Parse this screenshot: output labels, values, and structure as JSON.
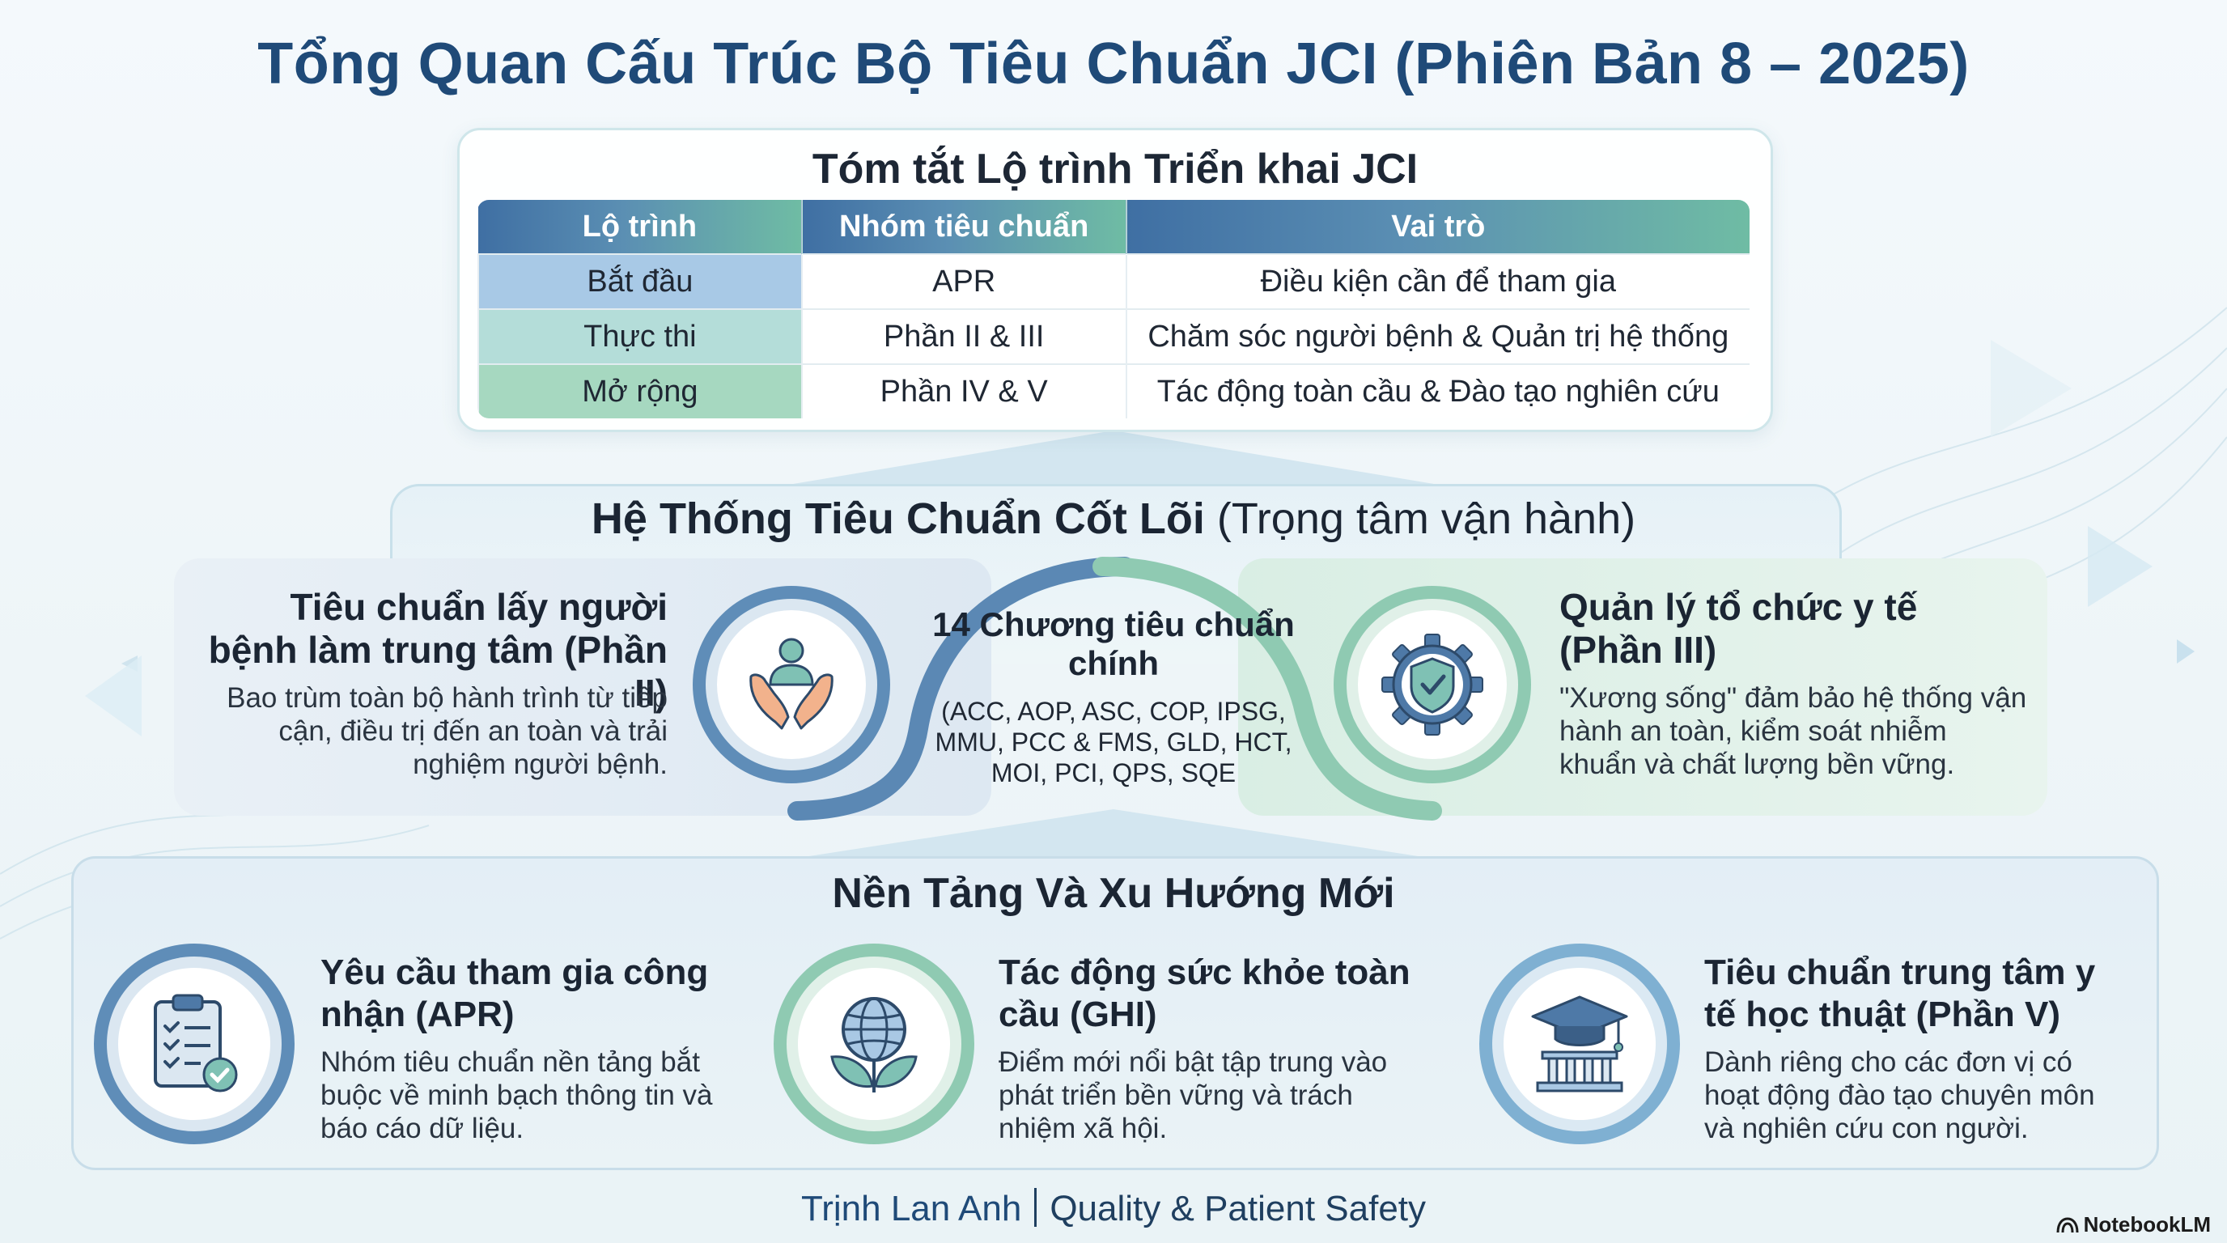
{
  "title": "Tổng Quan Cấu Trúc Bộ Tiêu Chuẩn JCI (Phiên Bản 8 – 2025)",
  "roadmap": {
    "title": "Tóm tắt Lộ trình Triển khai JCI",
    "headers": [
      "Lộ trình",
      "Nhóm tiêu chuẩn",
      "Vai trò"
    ],
    "rows": [
      [
        "Bắt đầu",
        "APR",
        "Điều kiện cần để tham gia"
      ],
      [
        "Thực thi",
        "Phần II & III",
        "Chăm sóc người bệnh & Quản trị hệ thống"
      ],
      [
        "Mở rộng",
        "Phần IV & V",
        "Tác động toàn cầu & Đào tạo nghiên cứu"
      ]
    ]
  },
  "core": {
    "title_bold": "Hệ Thống Tiêu Chuẩn Cốt Lõi",
    "title_normal": " (Trọng tâm vận hành)",
    "left": {
      "title": "Tiêu chuẩn lấy người bệnh làm trung tâm (Phần II)",
      "desc": "Bao trùm toàn bộ hành trình từ tiếp cận, điều trị đến an toàn và trải nghiệm người bệnh.",
      "icon": "caring-hands-icon"
    },
    "center": {
      "title": "14 Chương tiêu chuẩn chính",
      "desc": "(ACC, AOP, ASC, COP, IPSG, MMU, PCC & FMS, GLD, HCT, MOI, PCI, QPS, SQE"
    },
    "right": {
      "title": "Quản lý tổ chức y tế (Phần III)",
      "desc": "\"Xương sống\" đảm bảo hệ thống vận hành an toàn, kiểm soát nhiễm khuẩn và chất lượng bền vững.",
      "icon": "gear-shield-icon"
    }
  },
  "foundation": {
    "title": "Nền Tảng Và Xu Hướng Mới",
    "items": [
      {
        "title": "Yêu cầu tham gia công nhận (APR)",
        "desc": "Nhóm tiêu chuẩn nền tảng bắt buộc về minh bạch thông tin và báo cáo dữ liệu.",
        "icon": "clipboard-check-icon"
      },
      {
        "title": "Tác động sức khỏe toàn cầu (GHI)",
        "desc": "Điểm mới nổi bật tập trung vào phát triển bền vững và trách nhiệm xã hội.",
        "icon": "globe-leaves-icon"
      },
      {
        "title": "Tiêu chuẩn trung tâm y tế học thuật (Phần V)",
        "desc": "Dành riêng cho các đơn vị có hoạt động đào tạo chuyên môn và nghiên cứu con người.",
        "icon": "graduation-cap-icon"
      }
    ]
  },
  "footer": {
    "author": "Trịnh Lan Anh",
    "role": "Quality & Patient Safety"
  },
  "brand": "NotebookLM",
  "colors": {
    "title_blue": "#1f4a78",
    "header_blue": "#3f6fa3",
    "header_green": "#6fbca4",
    "ring_blue": "#5b88b4",
    "ring_green": "#8fcab2"
  }
}
